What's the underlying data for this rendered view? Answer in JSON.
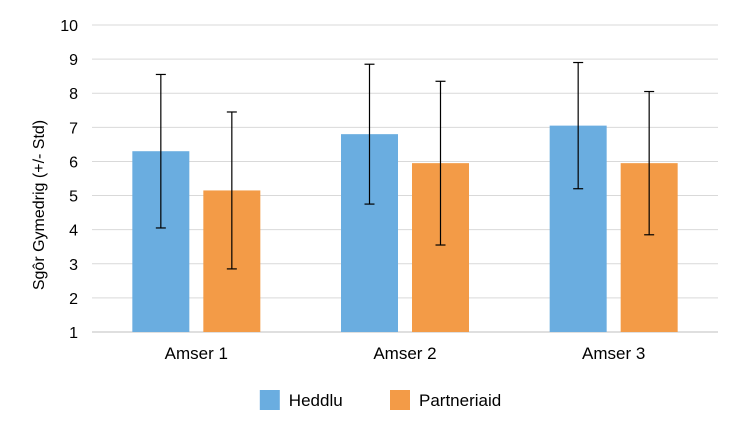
{
  "chart_data": {
    "type": "bar",
    "title": "",
    "xlabel": "",
    "ylabel": "Sgôr Gymedrig (+/- Std)",
    "ylim": [
      1,
      10
    ],
    "yticks": [
      1,
      2,
      3,
      4,
      5,
      6,
      7,
      8,
      9,
      10
    ],
    "grid": true,
    "legend_position": "bottom",
    "categories": [
      "Amser 1",
      "Amser 2",
      "Amser 3"
    ],
    "series": [
      {
        "name": "Heddlu",
        "color": "#6aade0",
        "values": [
          6.3,
          6.8,
          7.05
        ],
        "error": [
          2.25,
          2.05,
          1.85
        ]
      },
      {
        "name": "Partneriaid",
        "color": "#f39b47",
        "values": [
          5.15,
          5.95,
          5.95
        ],
        "error": [
          2.3,
          2.4,
          2.1
        ]
      }
    ]
  }
}
